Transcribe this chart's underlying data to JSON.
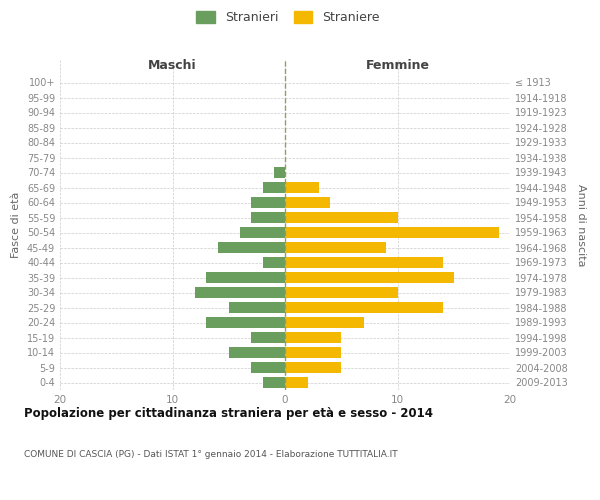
{
  "age_groups": [
    "0-4",
    "5-9",
    "10-14",
    "15-19",
    "20-24",
    "25-29",
    "30-34",
    "35-39",
    "40-44",
    "45-49",
    "50-54",
    "55-59",
    "60-64",
    "65-69",
    "70-74",
    "75-79",
    "80-84",
    "85-89",
    "90-94",
    "95-99",
    "100+"
  ],
  "birth_years": [
    "2009-2013",
    "2004-2008",
    "1999-2003",
    "1994-1998",
    "1989-1993",
    "1984-1988",
    "1979-1983",
    "1974-1978",
    "1969-1973",
    "1964-1968",
    "1959-1963",
    "1954-1958",
    "1949-1953",
    "1944-1948",
    "1939-1943",
    "1934-1938",
    "1929-1933",
    "1924-1928",
    "1919-1923",
    "1914-1918",
    "≤ 1913"
  ],
  "maschi": [
    2,
    3,
    5,
    3,
    7,
    5,
    8,
    7,
    2,
    6,
    4,
    3,
    3,
    2,
    1,
    0,
    0,
    0,
    0,
    0,
    0
  ],
  "femmine": [
    2,
    5,
    5,
    5,
    7,
    14,
    10,
    15,
    14,
    9,
    19,
    10,
    4,
    3,
    0,
    0,
    0,
    0,
    0,
    0,
    0
  ],
  "maschi_color": "#6a9e5e",
  "femmine_color": "#f5b800",
  "title": "Popolazione per cittadinanza straniera per età e sesso - 2014",
  "subtitle": "COMUNE DI CASCIA (PG) - Dati ISTAT 1° gennaio 2014 - Elaborazione TUTTITALIA.IT",
  "header_maschi": "Maschi",
  "header_femmine": "Femmine",
  "ylabel_left": "Fasce di età",
  "ylabel_right": "Anni di nascita",
  "legend_maschi": "Stranieri",
  "legend_femmine": "Straniere",
  "xlim": 20,
  "background_color": "#ffffff",
  "grid_color": "#cccccc",
  "axis_label_color": "#666666",
  "tick_color": "#888888",
  "bar_height": 0.72
}
